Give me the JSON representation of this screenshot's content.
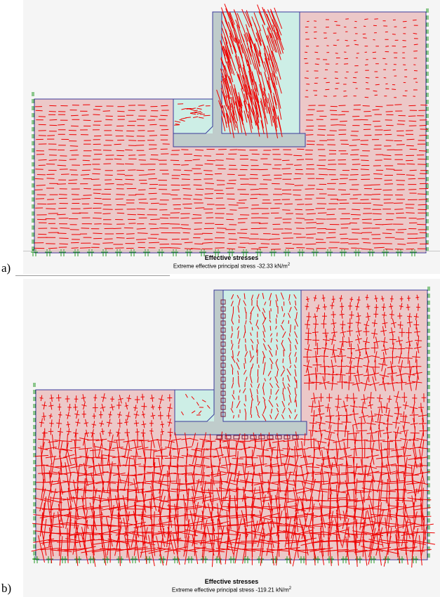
{
  "colors": {
    "soil": "#ecc8c8",
    "structure": "#cdeee6",
    "concrete": "#bfcccb",
    "outline": "#3a3a9a",
    "vector": "#ee0000",
    "support": "#229922"
  },
  "panels": [
    {
      "label": "a)",
      "title": "Effective stresses",
      "subtitle_prefix": "Extreme effective principal stress -32.33 kN/m",
      "subtitle_sup": "2"
    },
    {
      "label": "b)",
      "title": "Effective stresses",
      "subtitle_prefix": "Extreme effective principal stress -119.21 kN/m",
      "subtitle_sup": "2"
    }
  ]
}
